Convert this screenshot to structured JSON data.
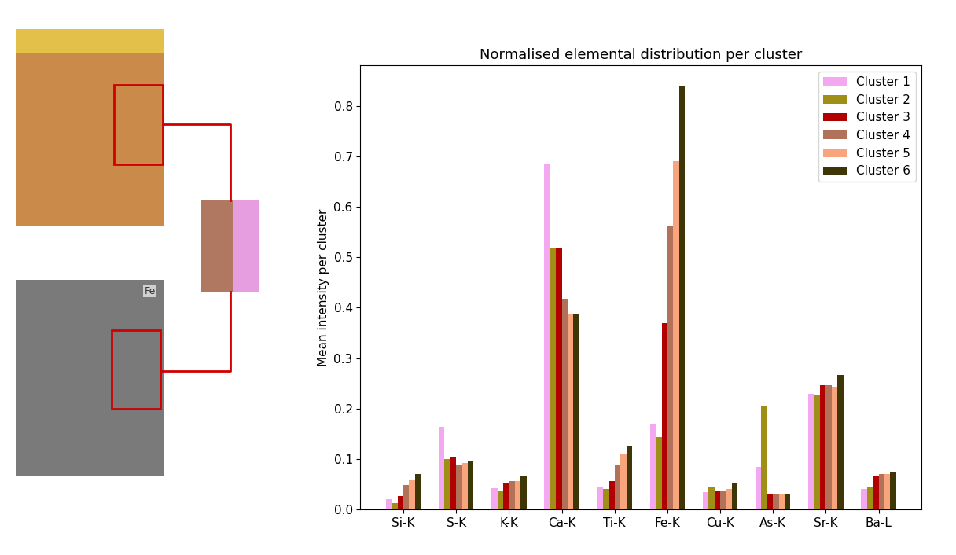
{
  "chart_data": {
    "type": "bar",
    "title": "Normalised elemental distribution per cluster",
    "y_label": "Mean intensity per cluster",
    "annotations": [
      "Fe"
    ],
    "categories": [
      "Si-K",
      "S-K",
      "K-K",
      "Ca-K",
      "Ti-K",
      "Fe-K",
      "Cu-K",
      "As-K",
      "Sr-K",
      "Ba-L"
    ],
    "series": [
      {
        "name": "Cluster 1",
        "color": "#f5a8f2",
        "values": [
          0.02,
          0.163,
          0.042,
          0.686,
          0.046,
          0.17,
          0.034,
          0.084,
          0.229,
          0.04
        ]
      },
      {
        "name": "Cluster 2",
        "color": "#a08f16",
        "values": [
          0.012,
          0.1,
          0.036,
          0.517,
          0.04,
          0.144,
          0.046,
          0.206,
          0.227,
          0.044
        ]
      },
      {
        "name": "Cluster 3",
        "color": "#b00000",
        "values": [
          0.027,
          0.105,
          0.052,
          0.519,
          0.057,
          0.37,
          0.036,
          0.03,
          0.246,
          0.065
        ]
      },
      {
        "name": "Cluster 4",
        "color": "#b27259",
        "values": [
          0.048,
          0.087,
          0.056,
          0.418,
          0.089,
          0.562,
          0.036,
          0.03,
          0.246,
          0.07
        ]
      },
      {
        "name": "Cluster 5",
        "color": "#f8a47c",
        "values": [
          0.058,
          0.092,
          0.056,
          0.387,
          0.11,
          0.69,
          0.04,
          0.031,
          0.244,
          0.07
        ]
      },
      {
        "name": "Cluster 6",
        "color": "#3f3608",
        "values": [
          0.07,
          0.096,
          0.067,
          0.387,
          0.127,
          0.838,
          0.051,
          0.03,
          0.267,
          0.075
        ]
      }
    ],
    "ylim": [
      0,
      0.88
    ],
    "yticks": [
      0.0,
      0.1,
      0.2,
      0.3,
      0.4,
      0.5,
      0.6,
      0.7,
      0.8
    ],
    "legend": "upper right",
    "grid": false
  }
}
